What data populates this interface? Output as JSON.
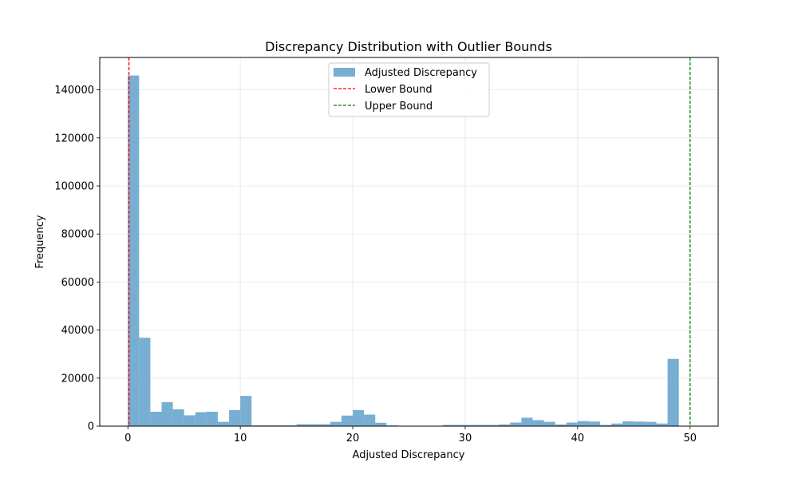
{
  "chart_data": {
    "type": "bar",
    "title": "Discrepancy Distribution with Outlier Bounds",
    "xlabel": "Adjusted Discrepancy",
    "ylabel": "Frequency",
    "xlim": [
      -2.5,
      52.5
    ],
    "ylim": [
      0,
      153500
    ],
    "grid": true,
    "legend_position": "upper center",
    "bin_start": 0,
    "bin_width": 1,
    "x_ticks": [
      0,
      10,
      20,
      30,
      40,
      50
    ],
    "y_ticks": [
      0,
      20000,
      40000,
      60000,
      80000,
      100000,
      120000,
      140000
    ],
    "series": [
      {
        "name": "Adjusted Discrepancy",
        "color": "#77aed2",
        "values": [
          146000,
          36800,
          6000,
          10000,
          7000,
          4500,
          5800,
          6000,
          1800,
          6700,
          12600,
          300,
          300,
          300,
          300,
          800,
          800,
          800,
          1800,
          4400,
          6700,
          4800,
          1400,
          300,
          0,
          0,
          0,
          0,
          500,
          500,
          500,
          500,
          500,
          700,
          1500,
          3500,
          2500,
          1800,
          700,
          1500,
          2100,
          1900,
          500,
          1100,
          2000,
          1900,
          1800,
          1100,
          28000
        ]
      }
    ],
    "lines": [
      {
        "name": "Lower Bound",
        "x": 0.1,
        "color": "#ff0000",
        "style": "dashed"
      },
      {
        "name": "Upper Bound",
        "x": 50,
        "color": "#008000",
        "style": "dashed"
      }
    ]
  }
}
